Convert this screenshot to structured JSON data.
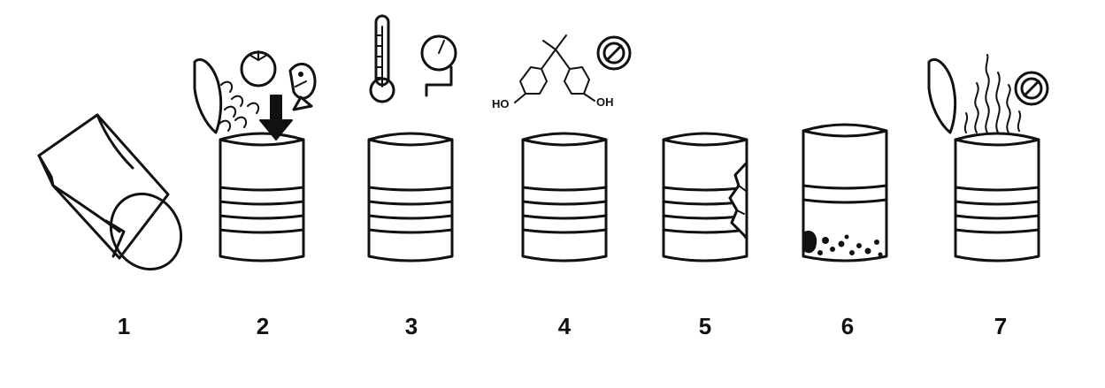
{
  "steps": [
    {
      "number": "1"
    },
    {
      "number": "2"
    },
    {
      "number": "3"
    },
    {
      "number": "4"
    },
    {
      "number": "5"
    },
    {
      "number": "6"
    },
    {
      "number": "7"
    }
  ],
  "chemical_labels": {
    "left": "HO",
    "right": "OH"
  },
  "icons": {
    "step1": "rolled-sheet-icon",
    "step2": [
      "tomato-icon",
      "fish-icon",
      "pasta-icon",
      "down-arrow-icon",
      "open-can-icon"
    ],
    "step3": [
      "thermometer-icon",
      "pressure-gauge-icon",
      "sealed-can-icon"
    ],
    "step4": [
      "bpa-molecule-icon",
      "prohibited-icon",
      "sealed-can-icon"
    ],
    "step5": [
      "damaged-can-icon"
    ],
    "step6": [
      "rusty-can-icon"
    ],
    "step7": [
      "open-can-icon",
      "odor-fumes-icon",
      "prohibited-icon"
    ]
  }
}
